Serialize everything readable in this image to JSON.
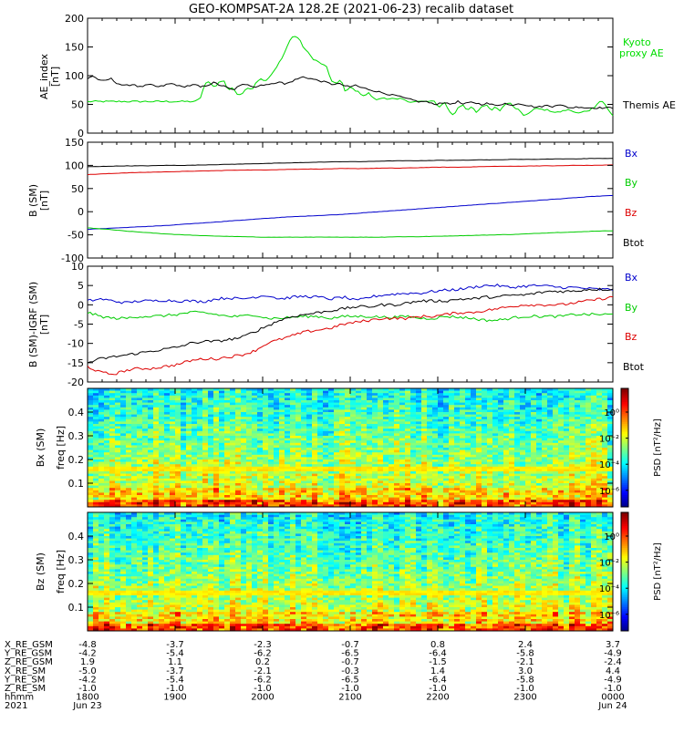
{
  "title": "GEO-KOMPSAT-2A 128.2E (2021-06-23) recalib dataset",
  "chart_data": [
    {
      "type": "line",
      "ylabel": "AE_index\n[nT]",
      "ylim": [
        0,
        200
      ],
      "yticks": [
        "0",
        "50",
        "100",
        "150",
        "200"
      ],
      "series": [
        {
          "name": "Kyoto\nproxy AE",
          "color": "#00dd00",
          "values": [
            55,
            55,
            55,
            55,
            55,
            55,
            55,
            55,
            55,
            55,
            55,
            55,
            55,
            55,
            55,
            55,
            55,
            55,
            55,
            55,
            55,
            55,
            55,
            55,
            60,
            85,
            90,
            80,
            88,
            92,
            75,
            80,
            65,
            70,
            80,
            75,
            90,
            95,
            90,
            100,
            110,
            125,
            140,
            160,
            170,
            165,
            150,
            140,
            130,
            125,
            120,
            115,
            90,
            85,
            95,
            70,
            80,
            75,
            70,
            65,
            70,
            60,
            58,
            62,
            60,
            60,
            58,
            60,
            55,
            55,
            55,
            55,
            55,
            55,
            55,
            45,
            55,
            40,
            30,
            45,
            50,
            40,
            45,
            35,
            45,
            50,
            40,
            45,
            40,
            50,
            55,
            45,
            40,
            30,
            35,
            40,
            45,
            40,
            40,
            38,
            35,
            38,
            40,
            40,
            35,
            35,
            38,
            40,
            45,
            55,
            55,
            40,
            30
          ]
        },
        {
          "name": "Themis AE",
          "color": "#000000",
          "values": [
            95,
            100,
            95,
            90,
            92,
            95,
            88,
            85,
            82,
            84,
            85,
            80,
            82,
            84,
            83,
            80,
            82,
            85,
            86,
            84,
            80,
            82,
            83,
            84,
            80,
            82,
            85,
            88,
            84,
            82,
            78,
            75,
            80,
            84,
            86,
            82,
            80,
            84,
            85,
            84,
            88,
            90,
            85,
            88,
            92,
            95,
            98,
            96,
            94,
            92,
            90,
            88,
            85,
            86,
            85,
            82,
            80,
            84,
            80,
            78,
            76,
            74,
            72,
            70,
            68,
            66,
            65,
            62,
            60,
            58,
            56,
            54,
            56,
            52,
            50,
            52,
            54,
            50,
            52,
            55,
            50,
            52,
            54,
            52,
            50,
            52,
            50,
            48,
            50,
            52,
            48,
            50,
            52,
            50,
            48,
            46,
            45,
            47,
            48,
            46,
            50,
            48,
            46,
            44,
            45,
            46,
            44,
            44,
            44,
            44,
            44,
            44,
            44
          ]
        }
      ]
    },
    {
      "type": "line",
      "ylabel": "B (SM)\n[nT]",
      "ylim": [
        -100,
        150
      ],
      "yticks": [
        "-100",
        "-50",
        "0",
        "50",
        "100",
        "150"
      ],
      "series": [
        {
          "name": "Bx",
          "color": "#0000cc",
          "values": [
            -38,
            -36,
            -34,
            -32,
            -30,
            -27,
            -24,
            -21,
            -18,
            -15,
            -12,
            -10,
            -8,
            -6,
            -3,
            0,
            3,
            6,
            9,
            12,
            15,
            18,
            21,
            24,
            27,
            30,
            33,
            35
          ]
        },
        {
          "name": "By",
          "color": "#00cc00",
          "values": [
            -35,
            -38,
            -42,
            -45,
            -48,
            -50,
            -52,
            -53,
            -54,
            -55,
            -55,
            -55,
            -55,
            -55,
            -55,
            -55,
            -54,
            -54,
            -53,
            -52,
            -51,
            -50,
            -49,
            -47,
            -45,
            -44,
            -42,
            -41
          ]
        },
        {
          "name": "Bz",
          "color": "#dd0000",
          "values": [
            80,
            82,
            84,
            85,
            86,
            87,
            88,
            89,
            90,
            90,
            91,
            92,
            92,
            93,
            93,
            94,
            94,
            95,
            96,
            96,
            97,
            98,
            98,
            99,
            99,
            100,
            100,
            101
          ]
        },
        {
          "name": "Btot",
          "color": "#000000",
          "values": [
            97,
            98,
            99,
            99,
            100,
            100,
            101,
            102,
            103,
            104,
            105,
            106,
            107,
            108,
            108,
            109,
            110,
            110,
            111,
            111,
            112,
            112,
            113,
            113,
            114,
            114,
            115,
            115
          ]
        }
      ]
    },
    {
      "type": "line",
      "ylabel": "B (SM)-IGRF (SM)\n[nT]",
      "ylim": [
        -20,
        10
      ],
      "yticks": [
        "-20",
        "-15",
        "-10",
        "-5",
        "0",
        "5",
        "10"
      ],
      "series": [
        {
          "name": "Bx",
          "color": "#0000cc",
          "values": [
            1,
            1.5,
            1,
            0.5,
            1,
            1,
            1.2,
            1,
            1,
            0.8,
            1.5,
            1.8,
            1.5,
            2,
            2.5,
            1.5,
            2,
            2.2,
            2,
            1.5,
            2,
            1,
            2,
            2.5,
            2.8,
            3,
            3,
            3.5,
            3.8,
            4,
            4.5,
            5,
            5,
            4.5,
            4.8,
            5,
            4.8,
            4.5,
            4.5,
            4.2,
            4,
            4
          ]
        },
        {
          "name": "By",
          "color": "#00cc00",
          "values": [
            -2,
            -3,
            -3.5,
            -3.5,
            -3,
            -3,
            -2.8,
            -2.5,
            -2,
            -2,
            -2.5,
            -3,
            -3,
            -2.5,
            -3.5,
            -3.5,
            -3.2,
            -3,
            -3,
            -3.5,
            -3,
            -3,
            -3,
            -3.2,
            -3.2,
            -3,
            -3.5,
            -3.5,
            -3,
            -3.2,
            -3.5,
            -4,
            -4,
            -3.5,
            -3,
            -3,
            -3,
            -3,
            -2.5,
            -2.5,
            -2.5,
            -2.5
          ]
        },
        {
          "name": "Bz",
          "color": "#dd0000",
          "values": [
            -16,
            -17.5,
            -18,
            -17,
            -16.5,
            -16.5,
            -16,
            -15.5,
            -14.5,
            -14,
            -14,
            -13.5,
            -13,
            -12,
            -10,
            -9,
            -8,
            -7,
            -6.5,
            -6,
            -5,
            -4.5,
            -4,
            -3.5,
            -3.5,
            -3.5,
            -3,
            -3,
            -2.5,
            -2,
            -2,
            -1.5,
            -1,
            -0.5,
            0,
            0,
            0,
            0,
            0.5,
            1,
            1.5,
            2
          ]
        },
        {
          "name": "Btot",
          "color": "#000000",
          "values": [
            -15,
            -14,
            -13.5,
            -13,
            -12.5,
            -12,
            -11.5,
            -11,
            -10,
            -9.5,
            -9.5,
            -9,
            -8.5,
            -7,
            -5.5,
            -4,
            -3,
            -2.5,
            -2,
            -1.5,
            -1,
            -0.5,
            -0.5,
            0,
            0,
            0.5,
            1,
            1,
            1,
            1.5,
            1.5,
            2,
            2,
            2.5,
            2.5,
            3,
            3.5,
            3.5,
            3.5,
            4,
            4,
            4
          ]
        }
      ]
    },
    {
      "type": "heatmap",
      "ylabel": "Bx (SM)\nfreq [Hz]",
      "ylim": [
        0.0,
        0.5
      ],
      "yticks": [
        "0.1",
        "0.2",
        "0.3",
        "0.4"
      ],
      "colorbar_label": "PSD [nT²/Hz]",
      "colorbar_ticks": [
        "10⁰",
        "10⁻²",
        "10⁻⁴",
        "10⁻⁶"
      ],
      "band_freq": 0.17
    },
    {
      "type": "heatmap",
      "ylabel": "Bz (SM)\nfreq [Hz]",
      "ylim": [
        0.0,
        0.5
      ],
      "yticks": [
        "0.1",
        "0.2",
        "0.3",
        "0.4"
      ],
      "colorbar_label": "PSD [nT²/Hz]",
      "colorbar_ticks": [
        "10⁰",
        "10⁻²",
        "10⁻⁴",
        "10⁻⁶"
      ],
      "band_freq": 0.17
    }
  ],
  "ephemeris": {
    "rows": [
      {
        "label": "X_RE_GSM",
        "values": [
          "-4.8",
          "-3.7",
          "-2.3",
          "-0.7",
          "0.8",
          "2.4",
          "3.7"
        ]
      },
      {
        "label": "Y_RE_GSM",
        "values": [
          "-4.2",
          "-5.4",
          "-6.2",
          "-6.5",
          "-6.4",
          "-5.8",
          "-4.9"
        ]
      },
      {
        "label": "Z_RE_GSM",
        "values": [
          "1.9",
          "1.1",
          "0.2",
          "-0.7",
          "-1.5",
          "-2.1",
          "-2.4"
        ]
      },
      {
        "label": "X_RE_SM",
        "values": [
          "-5.0",
          "-3.7",
          "-2.1",
          "-0.3",
          "1.4",
          "3.0",
          "4.4"
        ]
      },
      {
        "label": "Y_RE_SM",
        "values": [
          "-4.2",
          "-5.4",
          "-6.2",
          "-6.5",
          "-6.4",
          "-5.8",
          "-4.9"
        ]
      },
      {
        "label": "Z_RE_SM",
        "values": [
          "-1.0",
          "-1.0",
          "-1.0",
          "-1.0",
          "-1.0",
          "-1.0",
          "-1.0"
        ]
      },
      {
        "label": "hhmm",
        "values": [
          "1800",
          "1900",
          "2000",
          "2100",
          "2200",
          "2300",
          "0000"
        ]
      }
    ],
    "year": "2021",
    "date_start": "Jun 23",
    "date_end": "Jun 24"
  }
}
